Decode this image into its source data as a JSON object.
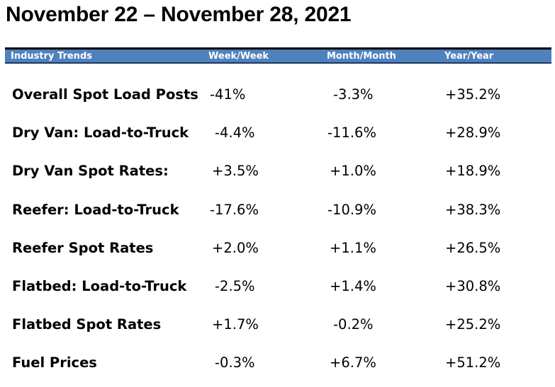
{
  "title": "November 22 – November 28, 2021",
  "header": {
    "col1": "Industry Trends",
    "col2": "Week/Week",
    "col3": "Month/Month",
    "col4": "Year/Year"
  },
  "rows": [
    {
      "label": "Overall Spot Load Posts",
      "week": "-41%",
      "month": "-3.3%",
      "year": "+35.2%"
    },
    {
      "label": "Dry Van: Load-to-Truck",
      "week": "-4.4%",
      "month": "-11.6%",
      "year": "+28.9%"
    },
    {
      "label": "Dry Van Spot Rates:",
      "week": "+3.5%",
      "month": "+1.0%",
      "year": "+18.9%"
    },
    {
      "label": "Reefer: Load-to-Truck",
      "week": "-17.6%",
      "month": "-10.9%",
      "year": "+38.3%"
    },
    {
      "label": "Reefer Spot Rates",
      "week": "+2.0%",
      "month": "+1.1%",
      "year": "+26.5%"
    },
    {
      "label": "Flatbed: Load-to-Truck",
      "week": "-2.5%",
      "month": "+1.4%",
      "year": "+30.8%"
    },
    {
      "label": "Flatbed Spot Rates",
      "week": "+1.7%",
      "month": "-0.2%",
      "year": "+25.2%"
    },
    {
      "label": "Fuel Prices",
      "week": "-0.3%",
      "month": "+6.7%",
      "year": "+51.2%"
    }
  ],
  "colors": {
    "header_bg": "#4f81bd",
    "header_text": "#ffffff"
  }
}
